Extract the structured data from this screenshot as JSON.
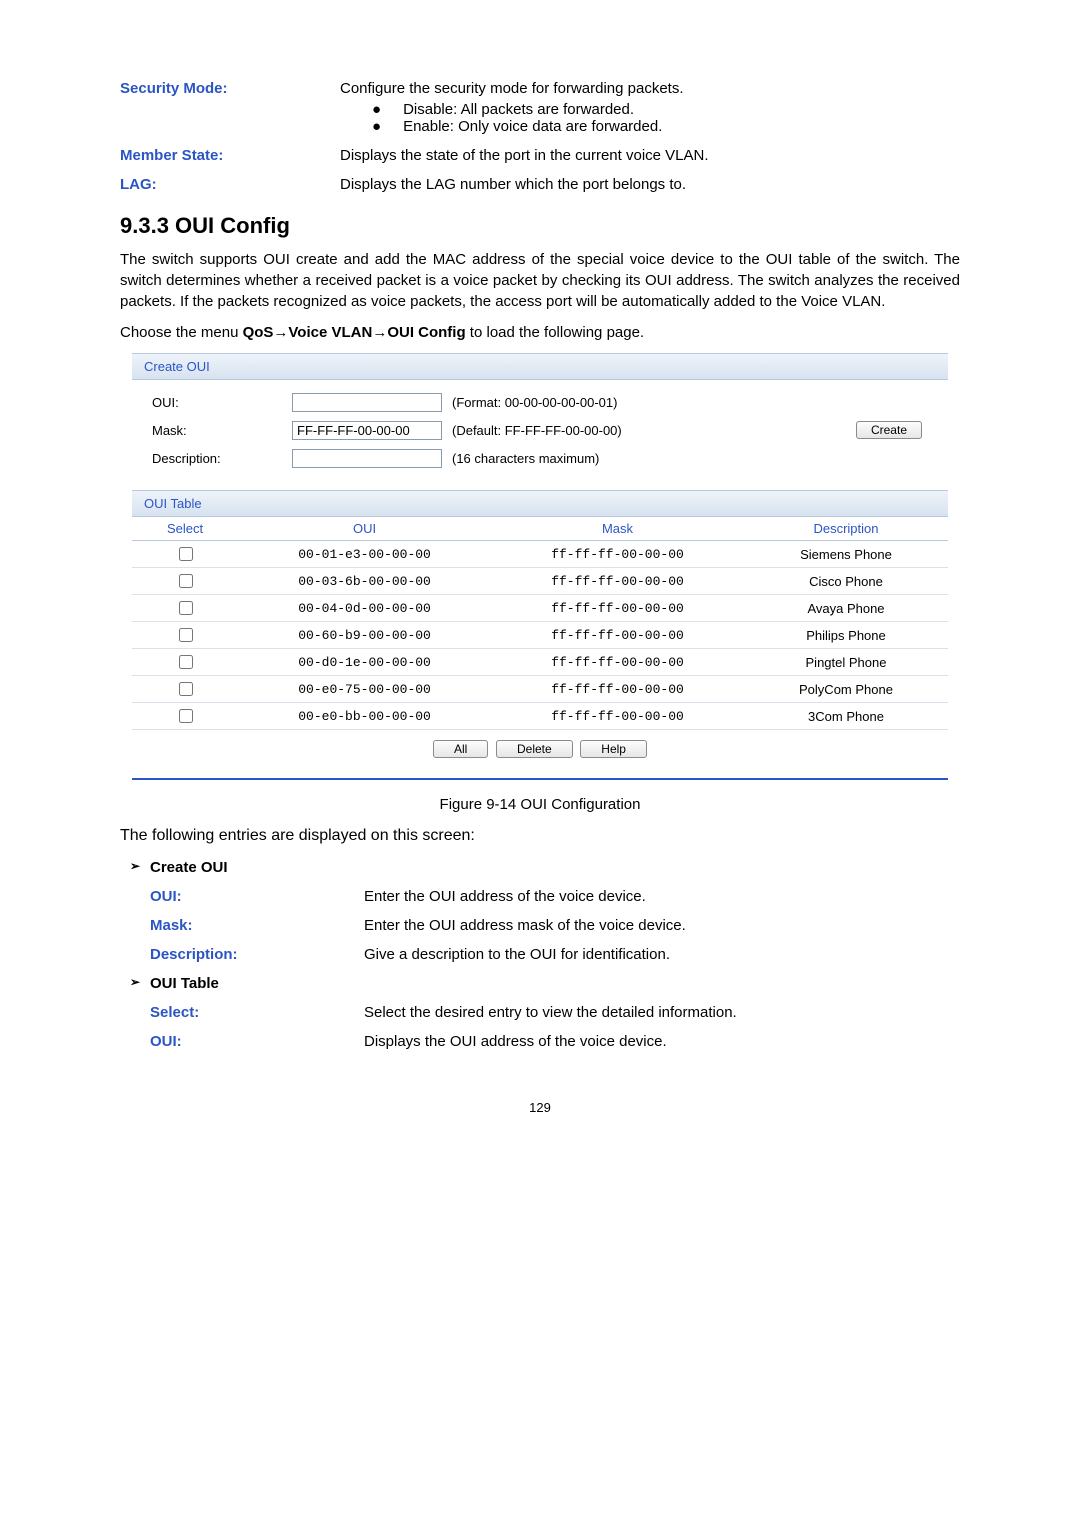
{
  "top_defs": [
    {
      "term": "Security Mode:",
      "body": "Configure the security mode for forwarding packets.",
      "bullets": [
        "Disable: All packets are forwarded.",
        "Enable: Only voice data are forwarded."
      ]
    },
    {
      "term": "Member State:",
      "body": "Displays the state of the port in the current voice VLAN."
    },
    {
      "term": "LAG:",
      "body": "Displays the LAG number which the port belongs to."
    }
  ],
  "section_title": "9.3.3 OUI Config",
  "para1": "The switch supports OUI create and add the MAC address of the special voice device to the OUI table of the switch. The switch determines whether a received packet is a voice packet by checking its OUI address. The switch analyzes the received packets. If the packets recognized as voice packets, the access port will be automatically added to the Voice VLAN.",
  "para2_prefix": "Choose the menu ",
  "para2_bold": "QoS→Voice VLAN→OUI Config",
  "para2_suffix": " to load the following page.",
  "create_oui": {
    "heading": "Create OUI",
    "rows": [
      {
        "label": "OUI:",
        "value": "",
        "hint": "(Format: 00-00-00-00-00-01)"
      },
      {
        "label": "Mask:",
        "value": "FF-FF-FF-00-00-00",
        "hint": "(Default: FF-FF-FF-00-00-00)"
      },
      {
        "label": "Description:",
        "value": "",
        "hint": "(16 characters maximum)"
      }
    ],
    "button": "Create"
  },
  "oui_table": {
    "heading": "OUI Table",
    "headers": [
      "Select",
      "OUI",
      "Mask",
      "Description"
    ],
    "rows": [
      {
        "oui": "00-01-e3-00-00-00",
        "mask": "ff-ff-ff-00-00-00",
        "desc": "Siemens Phone"
      },
      {
        "oui": "00-03-6b-00-00-00",
        "mask": "ff-ff-ff-00-00-00",
        "desc": "Cisco Phone"
      },
      {
        "oui": "00-04-0d-00-00-00",
        "mask": "ff-ff-ff-00-00-00",
        "desc": "Avaya Phone"
      },
      {
        "oui": "00-60-b9-00-00-00",
        "mask": "ff-ff-ff-00-00-00",
        "desc": "Philips Phone"
      },
      {
        "oui": "00-d0-1e-00-00-00",
        "mask": "ff-ff-ff-00-00-00",
        "desc": "Pingtel Phone"
      },
      {
        "oui": "00-e0-75-00-00-00",
        "mask": "ff-ff-ff-00-00-00",
        "desc": "PolyCom Phone"
      },
      {
        "oui": "00-e0-bb-00-00-00",
        "mask": "ff-ff-ff-00-00-00",
        "desc": "3Com Phone"
      }
    ],
    "buttons": [
      "All",
      "Delete",
      "Help"
    ]
  },
  "caption": "Figure 9-14 OUI Configuration",
  "entries_line": "The following entries are displayed on this screen:",
  "sub1": {
    "title": "Create OUI",
    "items": [
      {
        "term": "OUI:",
        "body": "Enter the OUI address of the voice device."
      },
      {
        "term": "Mask:",
        "body": "Enter the OUI address mask of the voice device."
      },
      {
        "term": "Description:",
        "body": "Give a description to the OUI for identification."
      }
    ]
  },
  "sub2": {
    "title": "OUI Table",
    "items": [
      {
        "term": "Select:",
        "body": "Select the desired entry to view the detailed information."
      },
      {
        "term": "OUI:",
        "body": "Displays the OUI address of the voice device."
      }
    ]
  },
  "page_num": "129",
  "colors": {
    "term_blue": "#2b55c5"
  }
}
